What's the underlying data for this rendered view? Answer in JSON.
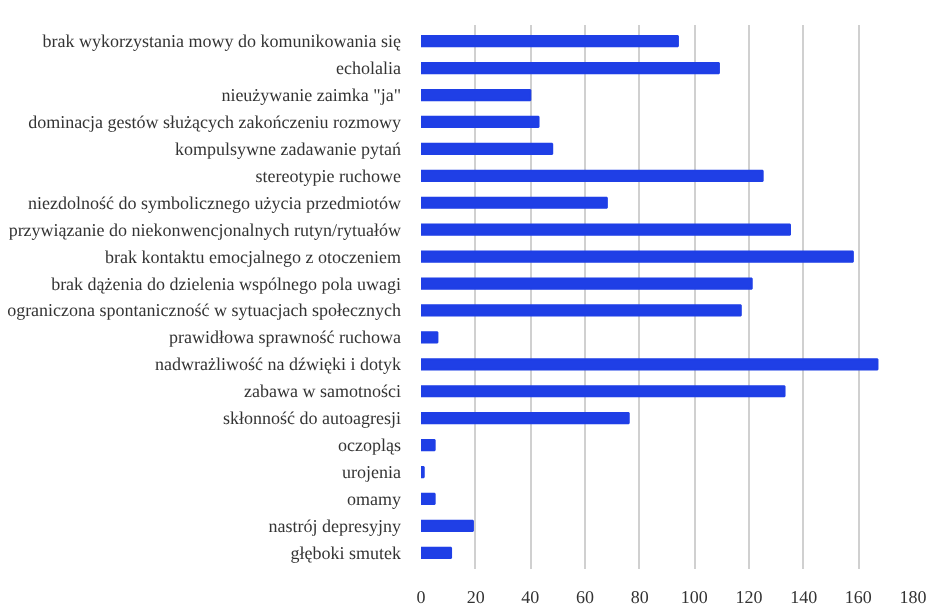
{
  "chart_data": {
    "type": "bar",
    "orientation": "horizontal",
    "categories": [
      "brak wykorzystania mowy do komunikowania się",
      "echolalia",
      "nieużywanie zaimka \"ja\"",
      "dominacja gestów służących zakończeniu rozmowy",
      "kompulsywne zadawanie pytań",
      "stereotypie ruchowe",
      "niezdolność do symbolicznego użycia przedmiotów",
      "przywiązanie do niekonwencjonalnych rutyn/rytuałów",
      "brak kontaktu emocjalnego z otoczeniem",
      "brak dążenia do dzielenia wspólnego pola uwagi",
      "ograniczona spontaniczność w sytuacjach społecznych",
      "prawidłowa sprawność ruchowa",
      "nadwrażliwość na dźwięki i dotyk",
      "zabawa w samotności",
      "skłonność do autoagresji",
      "oczopląs",
      "urojenia",
      "omamy",
      "nastrój depresyjny",
      "głęboki smutek"
    ],
    "values": [
      94,
      109,
      40,
      43,
      48,
      125,
      68,
      135,
      158,
      121,
      117,
      6,
      167,
      133,
      76,
      5,
      1,
      5,
      19,
      11
    ],
    "color": "#1f3fe6",
    "xlim": [
      0,
      180
    ],
    "xticks": [
      0,
      20,
      40,
      60,
      80,
      100,
      120,
      140,
      160,
      180
    ],
    "grid": "x"
  }
}
